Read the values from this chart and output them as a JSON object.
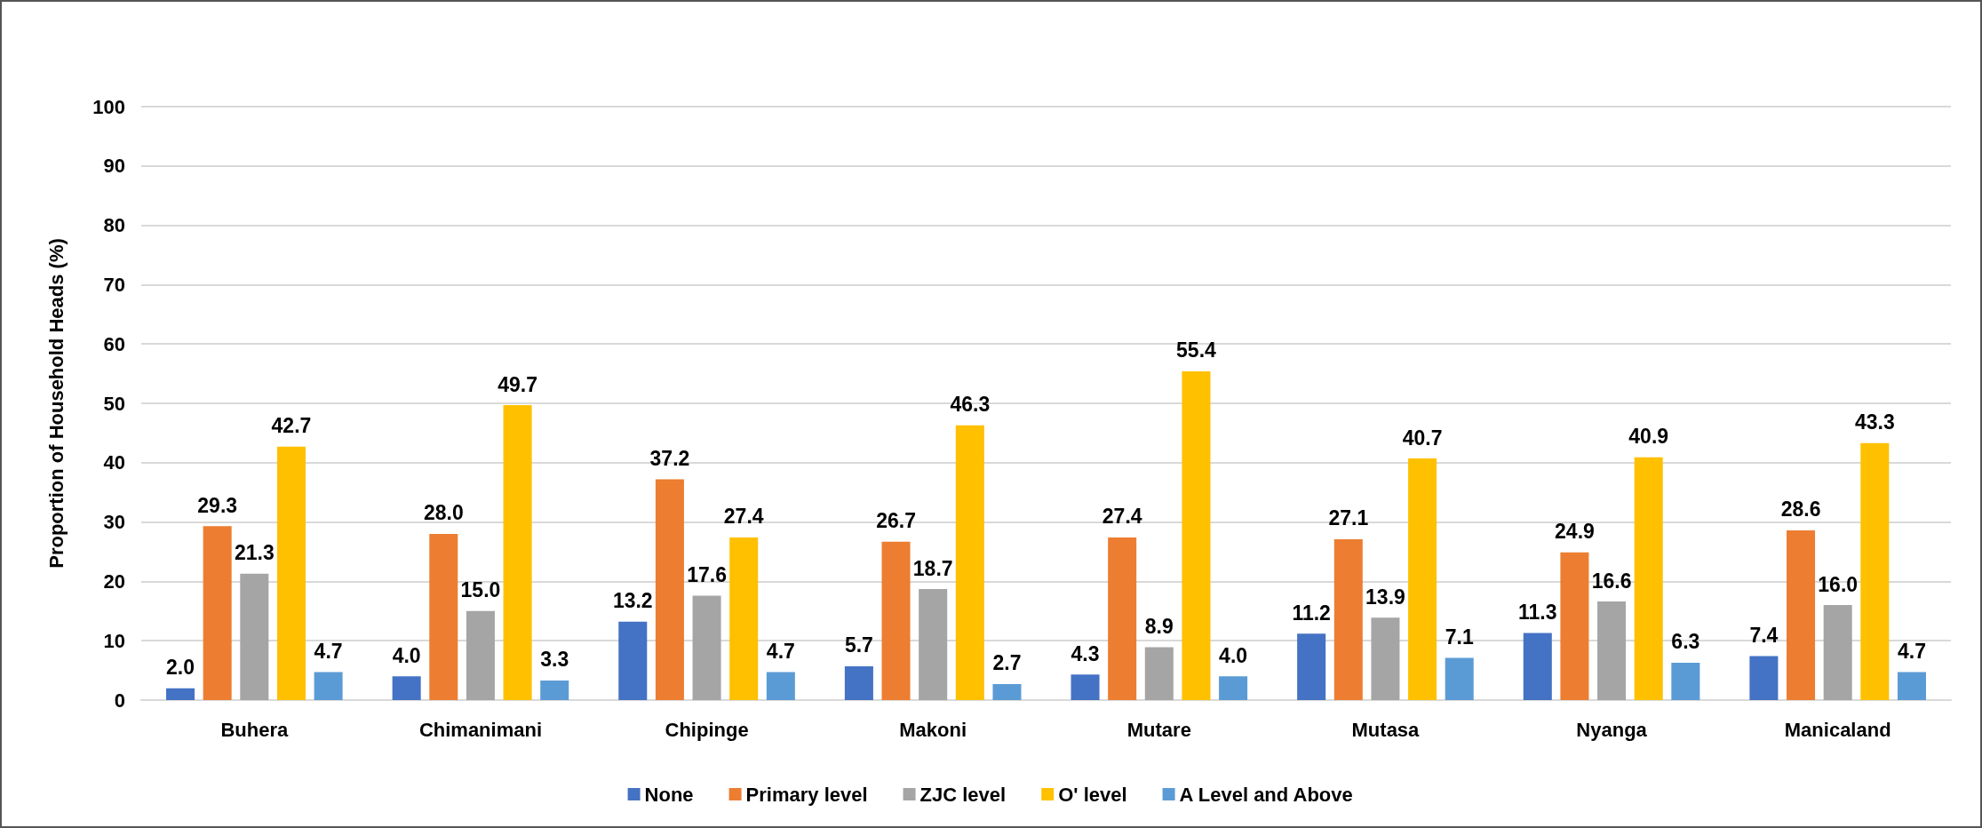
{
  "chart_data": {
    "type": "bar",
    "ylabel": "Proportion of Household Heads (%)",
    "categories": [
      "Buhera",
      "Chimanimani",
      "Chipinge",
      "Makoni",
      "Mutare",
      "Mutasa",
      "Nyanga",
      "Manicaland"
    ],
    "series": [
      {
        "name": "None",
        "color": "#4472c4",
        "values": [
          2.0,
          4.0,
          13.2,
          5.7,
          4.3,
          11.2,
          11.3,
          7.4
        ],
        "value_labels": [
          "2.0",
          "4.0",
          "13.2",
          "5.7",
          "4.3",
          "11.2",
          "11.3",
          "7.4"
        ]
      },
      {
        "name": "Primary level",
        "color": "#ed7d31",
        "values": [
          29.3,
          28.0,
          37.2,
          26.7,
          27.4,
          27.1,
          24.9,
          28.6
        ],
        "value_labels": [
          "29.3",
          "28.0",
          "37.2",
          "26.7",
          "27.4",
          "27.1",
          "24.9",
          "28.6"
        ]
      },
      {
        "name": "ZJC level",
        "color": "#a5a5a5",
        "values": [
          21.3,
          15.0,
          17.6,
          18.7,
          8.9,
          13.9,
          16.6,
          16.0
        ],
        "value_labels": [
          "21.3",
          "15.0",
          "17.6",
          "18.7",
          "8.9",
          "13.9",
          "16.6",
          "16.0"
        ]
      },
      {
        "name": "O' level",
        "color": "#ffc000",
        "values": [
          42.7,
          49.7,
          27.4,
          46.3,
          55.4,
          40.7,
          40.9,
          43.3
        ],
        "value_labels": [
          "42.7",
          "49.7",
          "27.4",
          "46.3",
          "55.4",
          "40.7",
          "40.9",
          "43.3"
        ]
      },
      {
        "name": "A Level and Above",
        "color": "#5b9bd5",
        "values": [
          4.7,
          3.3,
          4.7,
          2.7,
          4.0,
          7.1,
          6.3,
          4.7
        ],
        "value_labels": [
          "4.7",
          "3.3",
          "4.7",
          "2.7",
          "4.0",
          "7.1",
          "6.3",
          "4.7"
        ]
      }
    ],
    "ylim": [
      0,
      100
    ],
    "yticks": [
      0,
      10,
      20,
      30,
      40,
      50,
      60,
      70,
      80,
      90,
      100
    ],
    "grid": "y",
    "legend": "bottom"
  }
}
